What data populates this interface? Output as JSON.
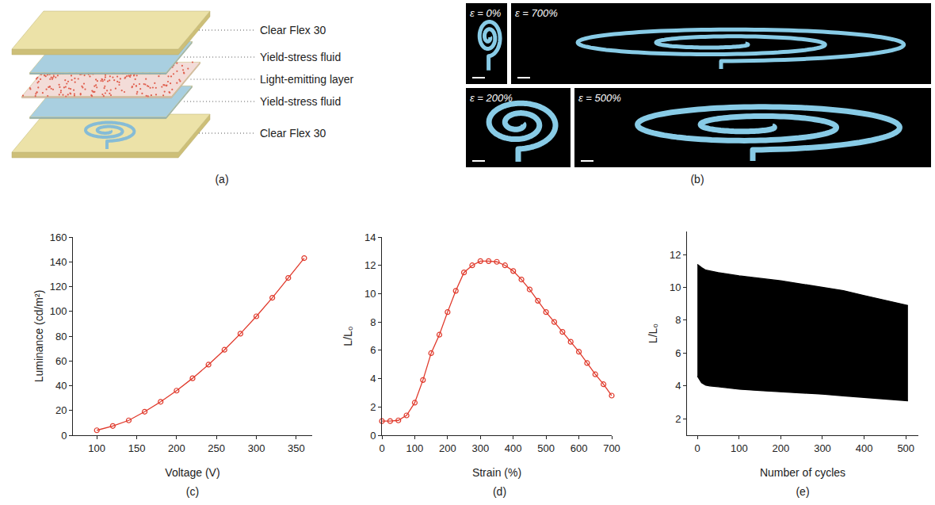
{
  "diagram": {
    "label": "(a)",
    "layers": [
      "Clear Flex 30",
      "Yield-stress fluid",
      "Light-emitting layer",
      "Yield-stress fluid",
      "Clear Flex 30"
    ]
  },
  "photos": {
    "label": "(b)",
    "frames": [
      "ε = 0%",
      "ε = 700%",
      "ε = 200%",
      "ε = 500%"
    ]
  },
  "chart_data": [
    {
      "label": "(c)",
      "type": "line",
      "x_label": "Voltage (V)",
      "y_label": "Luminance (cd/m²)",
      "x": [
        100,
        120,
        140,
        160,
        180,
        200,
        220,
        240,
        260,
        280,
        300,
        320,
        340,
        360
      ],
      "series": [
        {
          "color": "#e0392b",
          "marker": "circle-open",
          "line_style": "solid",
          "values": [
            4,
            7.5,
            12,
            19,
            27,
            36,
            46,
            57,
            69,
            82,
            96,
            111,
            127,
            143
          ]
        }
      ],
      "xlim": [
        70,
        370
      ],
      "xticks": [
        100,
        150,
        200,
        250,
        300,
        350
      ],
      "ylim": [
        0,
        160
      ],
      "yticks": [
        0,
        20,
        40,
        60,
        80,
        100,
        120,
        140,
        160
      ],
      "grid": false
    },
    {
      "label": "(d)",
      "type": "line",
      "x_label": "Strain (%)",
      "y_label": "L/L₀",
      "x": [
        0,
        25,
        50,
        75,
        100,
        125,
        150,
        175,
        200,
        225,
        250,
        275,
        300,
        325,
        350,
        375,
        400,
        425,
        450,
        475,
        500,
        525,
        550,
        575,
        600,
        625,
        650,
        675,
        700
      ],
      "series": [
        {
          "color": "#e0392b",
          "marker": "circle-open",
          "line_style": "solid",
          "values": [
            1.0,
            1.0,
            1.05,
            1.4,
            2.3,
            3.9,
            5.8,
            7.1,
            8.7,
            10.2,
            11.5,
            12.0,
            12.3,
            12.3,
            12.25,
            12.0,
            11.6,
            11.0,
            10.3,
            9.5,
            8.7,
            8.0,
            7.3,
            6.6,
            5.9,
            5.1,
            4.3,
            3.6,
            2.8
          ]
        }
      ],
      "xlim": [
        0,
        700
      ],
      "xticks": [
        0,
        100,
        200,
        300,
        400,
        500,
        600,
        700
      ],
      "ylim": [
        0,
        14
      ],
      "yticks": [
        0,
        2,
        4,
        6,
        8,
        10,
        12,
        14
      ],
      "grid": false
    },
    {
      "label": "(e)",
      "type": "area",
      "x_label": "Number of cycles",
      "y_label": "L/L₀",
      "x": [
        0,
        5,
        10,
        20,
        30,
        50,
        100,
        150,
        200,
        250,
        300,
        350,
        400,
        450,
        505
      ],
      "series": [
        {
          "color": "#000000",
          "values": [
            4.6,
            4.4,
            4.2,
            4.05,
            4.0,
            3.95,
            3.8,
            3.72,
            3.65,
            3.58,
            3.5,
            3.4,
            3.3,
            3.2,
            3.1
          ]
        },
        {
          "color": "#000000",
          "values": [
            11.4,
            11.3,
            11.2,
            11.05,
            11.0,
            10.9,
            10.7,
            10.55,
            10.4,
            10.2,
            10.0,
            9.8,
            9.5,
            9.2,
            8.9
          ]
        }
      ],
      "xlim": [
        -25,
        530
      ],
      "xticks": [
        0,
        100,
        200,
        300,
        400,
        500
      ],
      "ylim": [
        1,
        13.4
      ],
      "yticks": [
        2,
        4,
        6,
        8,
        10,
        12
      ],
      "grid": false
    }
  ]
}
